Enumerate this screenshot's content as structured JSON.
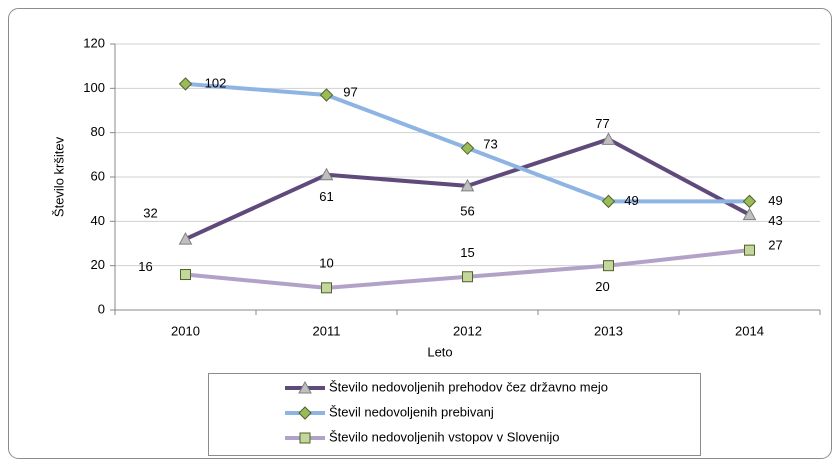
{
  "chart_data": {
    "type": "line",
    "x_label": "Leto",
    "y_label": "Število kršitev",
    "categories": [
      "2010",
      "2011",
      "2012",
      "2013",
      "2014"
    ],
    "ylim": [
      0,
      120
    ],
    "yticks": [
      0,
      20,
      40,
      60,
      80,
      100,
      120
    ],
    "grid": true,
    "series": [
      {
        "name": "Število nedovoljenih prehodov čez državno mejo",
        "color": "#604a7b",
        "marker": "triangle",
        "values": [
          32,
          61,
          56,
          77,
          43
        ]
      },
      {
        "name": "Števil nedovoljenih prebivanj",
        "color": "#8eb4e3",
        "marker": "diamond",
        "values": [
          102,
          97,
          73,
          49,
          49
        ]
      },
      {
        "name": "Število nedovoljenih vstopov v Slovenijo",
        "color": "#b3a2c7",
        "marker": "square",
        "values": [
          16,
          10,
          15,
          20,
          27
        ]
      }
    ]
  }
}
